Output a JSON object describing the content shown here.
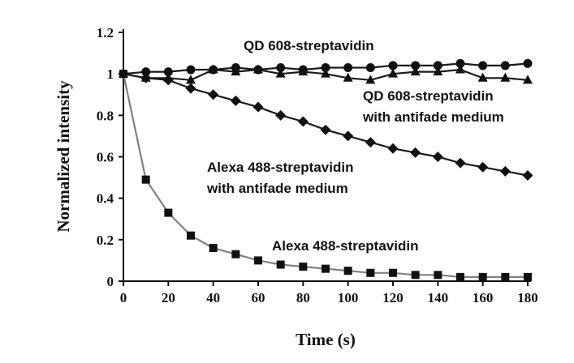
{
  "chart_data": {
    "type": "line",
    "xlabel": "Time (s)",
    "ylabel": "Normalized intensity",
    "xlim": [
      0,
      180
    ],
    "ylim": [
      0,
      1.2
    ],
    "xticks": [
      "0",
      "20",
      "40",
      "60",
      "80",
      "100",
      "120",
      "140",
      "160",
      "180"
    ],
    "yticks": [
      "0",
      "0.2",
      "0.4",
      "0.6",
      "0.8",
      "1",
      "1.2"
    ],
    "grid": false,
    "x": [
      0,
      10,
      20,
      30,
      40,
      50,
      60,
      70,
      80,
      90,
      100,
      110,
      120,
      130,
      140,
      150,
      160,
      170,
      180
    ],
    "series": [
      {
        "marker": "circle",
        "line_color": "#1a1a1a",
        "values": [
          1.0,
          1.01,
          1.01,
          1.02,
          1.02,
          1.03,
          1.02,
          1.03,
          1.02,
          1.03,
          1.03,
          1.03,
          1.04,
          1.04,
          1.04,
          1.05,
          1.04,
          1.04,
          1.05
        ]
      },
      {
        "marker": "triangle",
        "line_color": "#1a1a1a",
        "values": [
          1.0,
          0.98,
          0.98,
          0.97,
          1.02,
          1.01,
          1.02,
          1.0,
          1.01,
          1.0,
          0.98,
          0.97,
          1.0,
          1.01,
          1.01,
          1.02,
          0.98,
          0.98,
          0.97
        ]
      },
      {
        "marker": "diamond",
        "line_color": "#1a1a1a",
        "values": [
          1.0,
          0.98,
          0.97,
          0.93,
          0.9,
          0.87,
          0.84,
          0.8,
          0.77,
          0.73,
          0.7,
          0.67,
          0.64,
          0.62,
          0.6,
          0.57,
          0.55,
          0.53,
          0.51
        ]
      },
      {
        "marker": "square",
        "line_color": "#808080",
        "values": [
          1.0,
          0.49,
          0.33,
          0.22,
          0.16,
          0.13,
          0.1,
          0.08,
          0.07,
          0.06,
          0.05,
          0.04,
          0.04,
          0.03,
          0.03,
          0.02,
          0.02,
          0.02,
          0.02
        ]
      }
    ],
    "annotations": [
      {
        "text": "QD 608-streptavidin"
      },
      {
        "text": "QD 608-streptavidin"
      },
      {
        "text": "with antifade medium"
      },
      {
        "text": "Alexa 488-streptavidin"
      },
      {
        "text": "with antifade medium"
      },
      {
        "text": "Alexa 488-streptavidin"
      }
    ]
  }
}
